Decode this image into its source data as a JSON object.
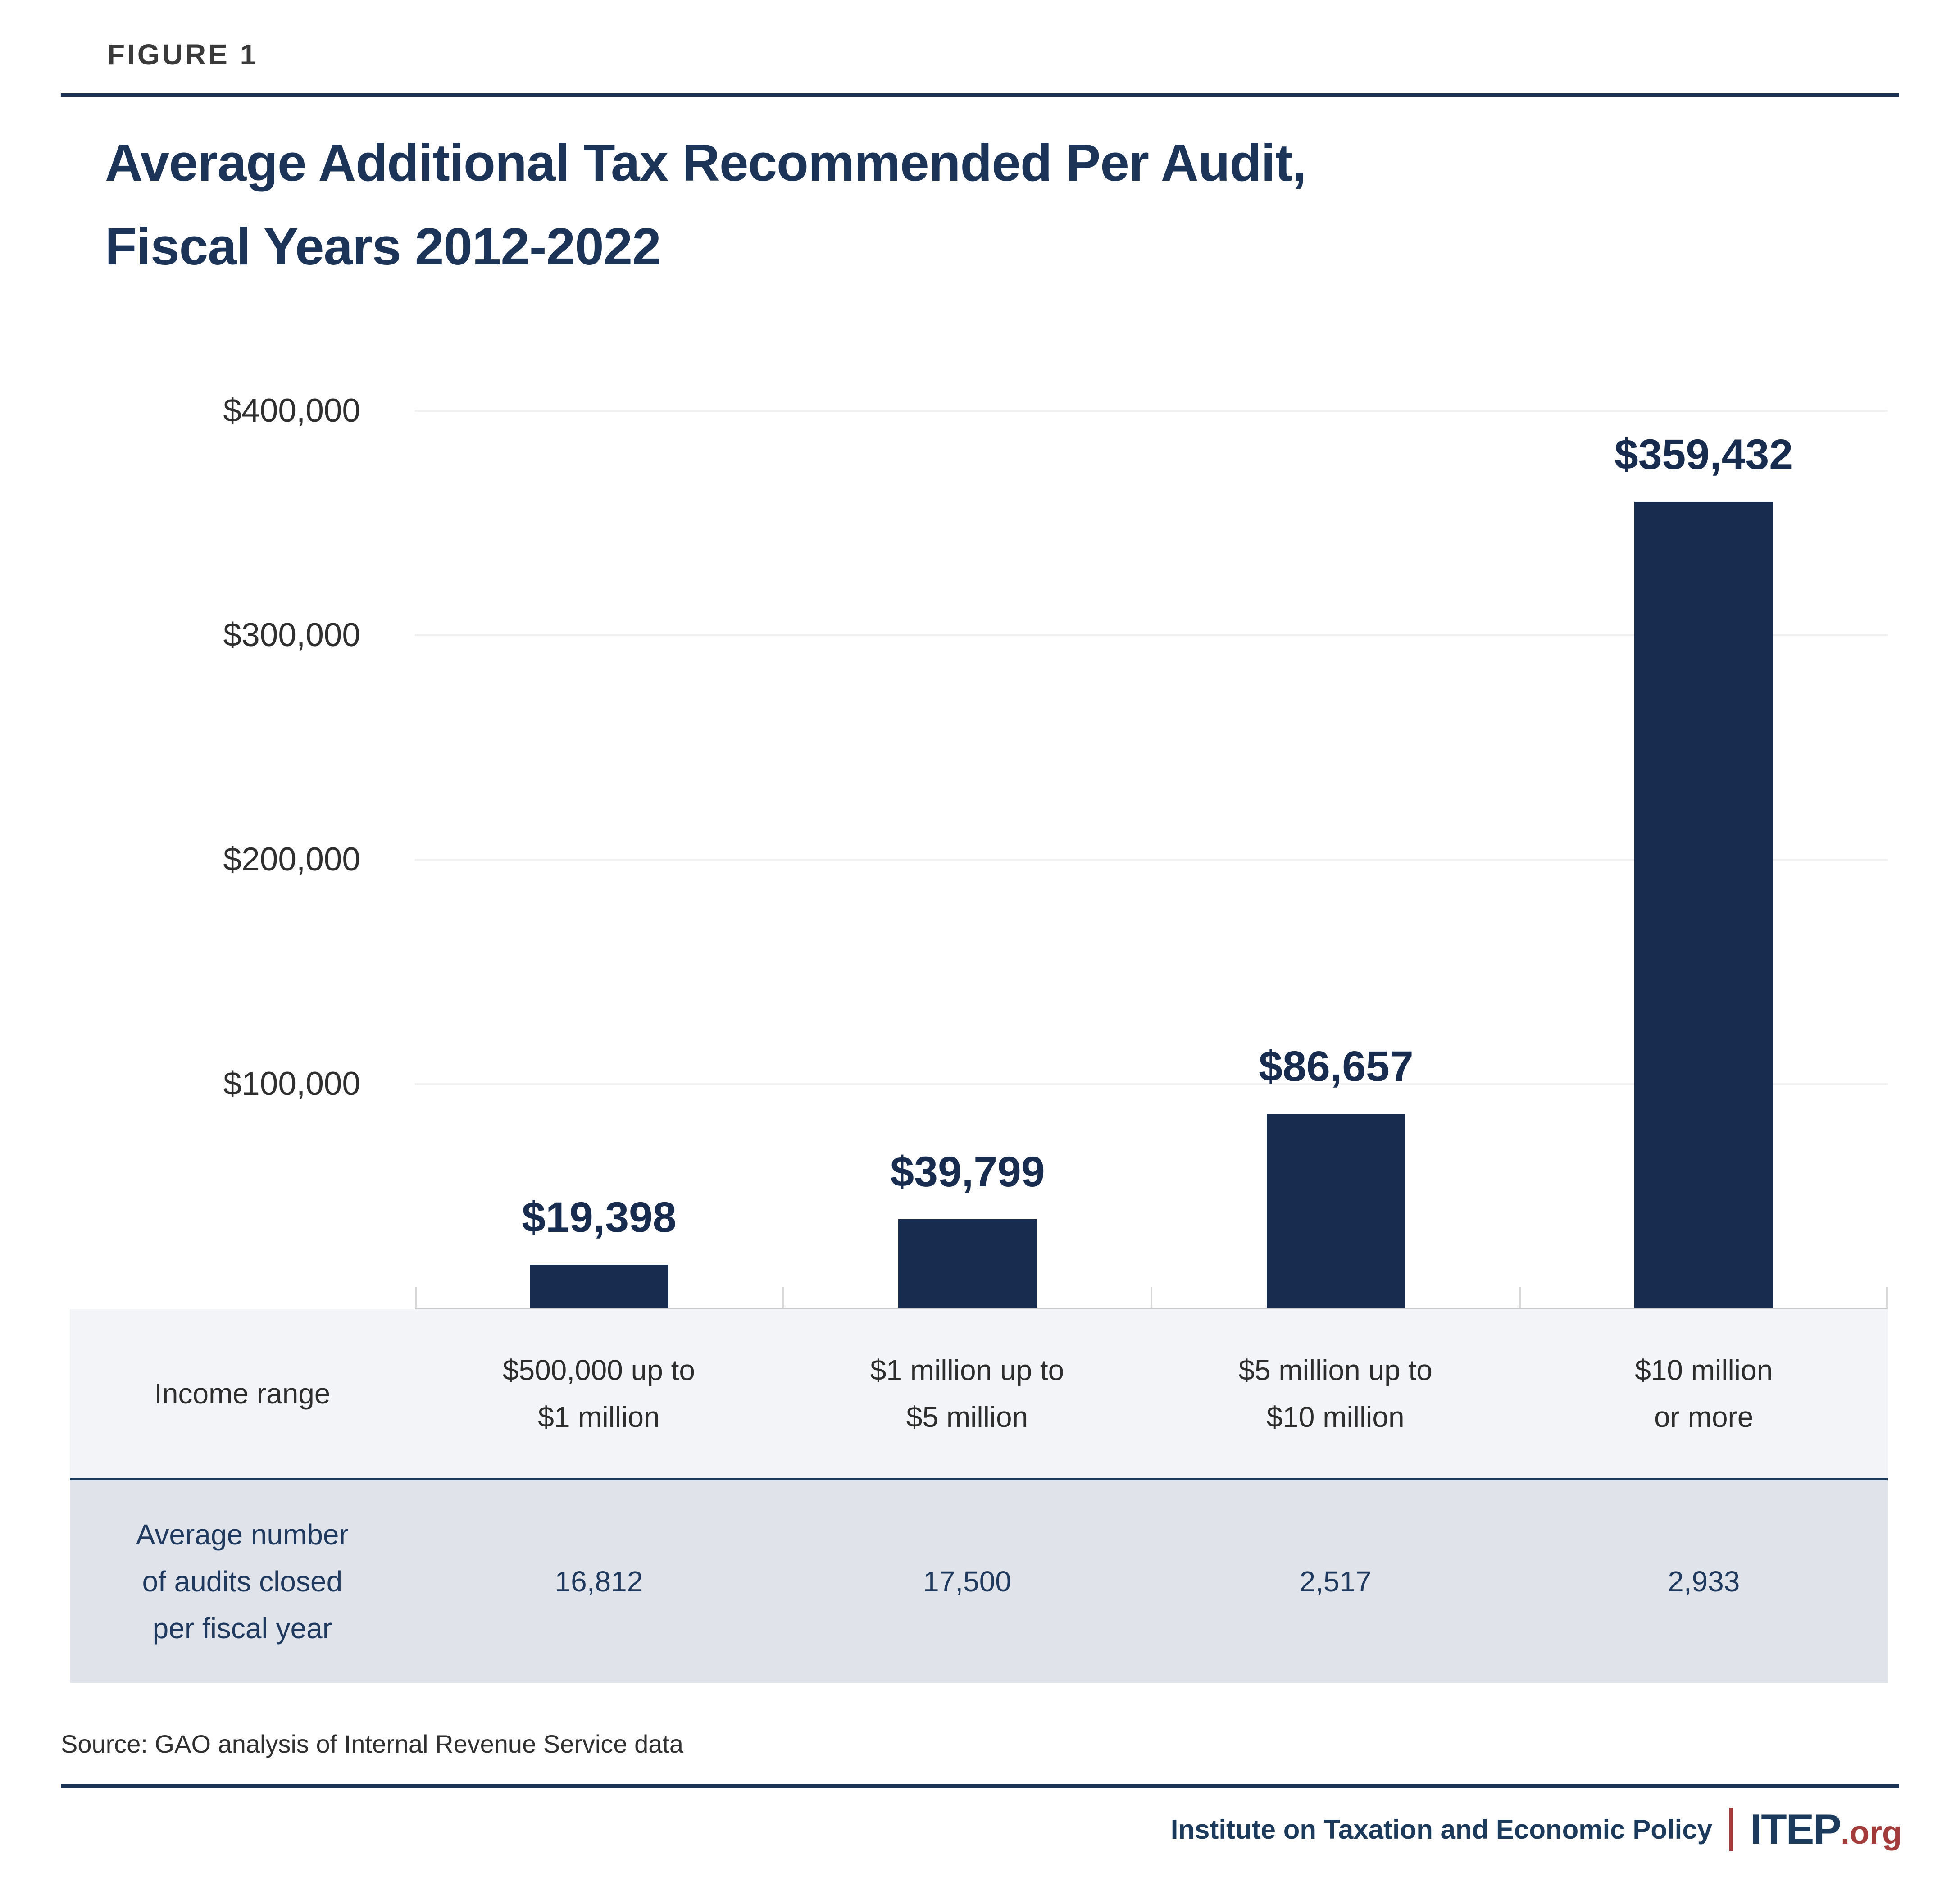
{
  "figure_label": "FIGURE 1",
  "title_line1": "Average Additional Tax Recommended Per Audit,",
  "title_line2": "Fiscal Years 2012-2022",
  "chart_data": {
    "type": "bar",
    "title": "Average Additional Tax Recommended Per Audit, Fiscal Years 2012-2022",
    "categories": [
      "$500,000 up to $1 million",
      "$1 million up to $5 million",
      "$5 million up to $10 million",
      "$10 million or more"
    ],
    "values": [
      19398,
      39799,
      86657,
      359432
    ],
    "value_labels": [
      "$19,398",
      "$39,799",
      "$86,657",
      "$359,432"
    ],
    "xlabel": "Income range",
    "ylabel": "",
    "ylim": [
      0,
      400000
    ],
    "y_tick_labels": [
      "$400,000",
      "$300,000",
      "$200,000",
      "$100,000"
    ],
    "grid": "horizontal gridlines every $100,000, light gray",
    "legend": "none",
    "bar_color": "#172c4e"
  },
  "table": {
    "row1_label": "Income range",
    "headers": [
      {
        "line1": "$500,000 up to",
        "line2": "$1 million"
      },
      {
        "line1": "$1 million up to",
        "line2": "$5 million"
      },
      {
        "line1": "$5 million up to",
        "line2": "$10 million"
      },
      {
        "line1": "$10 million",
        "line2": "or more"
      }
    ],
    "row2_label_line1": "Average number",
    "row2_label_line2": "of audits closed",
    "row2_label_line3": "per fiscal year",
    "row2_values": [
      "16,812",
      "17,500",
      "2,517",
      "2,933"
    ]
  },
  "source": "Source: GAO analysis of Internal Revenue Service data",
  "footer": {
    "org_name": "Institute on Taxation and Economic Policy",
    "logo_text": "ITEP",
    "logo_suffix": ".org"
  },
  "colors": {
    "navy_title": "#1c3457",
    "navy_bar": "#172c4e",
    "navy_rule": "#1b3355",
    "navy_table_text": "#1f3a5e",
    "brand_red": "#a23b39",
    "row1_bg": "#f3f4f7",
    "row2_bg": "#e0e4ea",
    "gridline": "#f1f1f1",
    "axis_baseline": "#cccccc",
    "text_dark_gray": "#2f2f2f"
  }
}
